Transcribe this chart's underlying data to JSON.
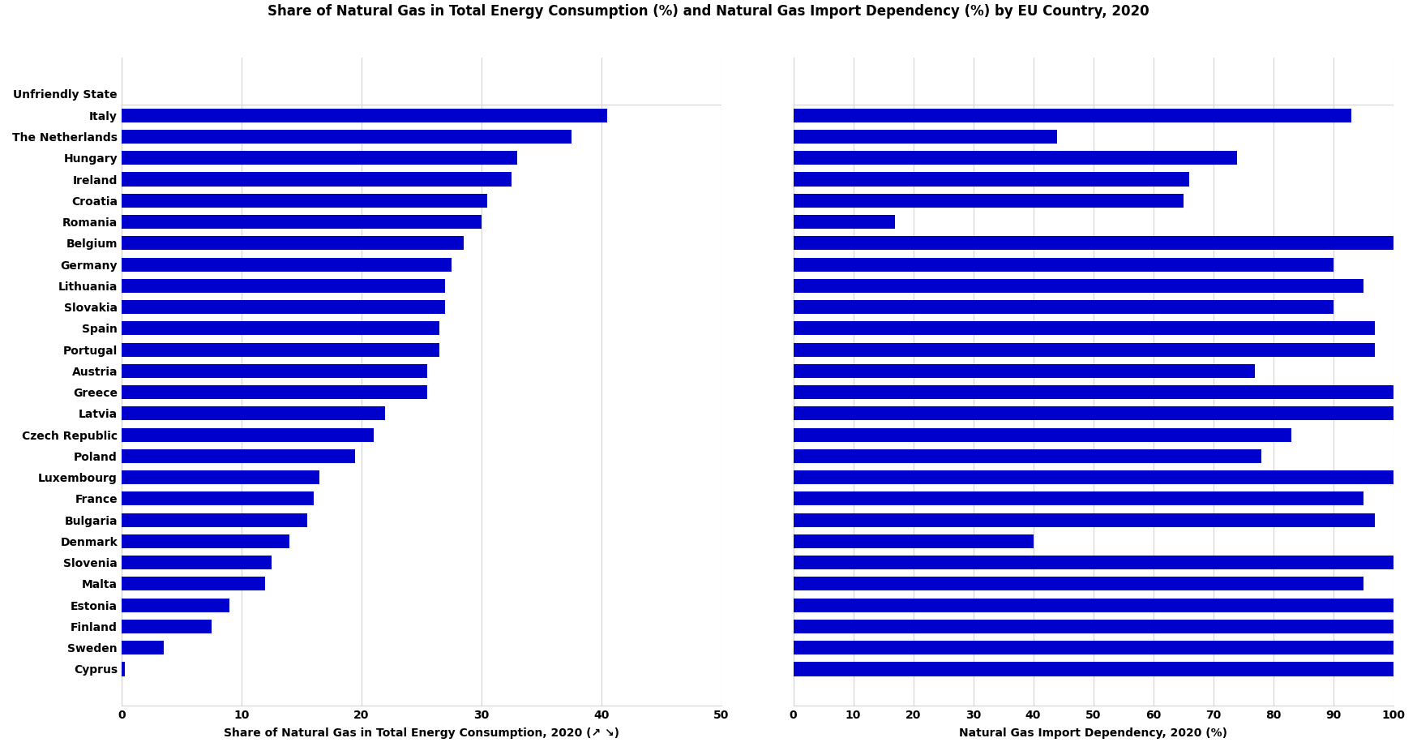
{
  "title": "Share of Natural Gas in Total Energy Consumption (%) and Natural Gas Import Dependency (%) by EU Country, 2020",
  "countries": [
    "Unfriendly State",
    "Italy",
    "The Netherlands",
    "Hungary",
    "Ireland",
    "Croatia",
    "Romania",
    "Belgium",
    "Germany",
    "Lithuania",
    "Slovakia",
    "Spain",
    "Portugal",
    "Austria",
    "Greece",
    "Latvia",
    "Czech Republic",
    "Poland",
    "Luxembourg",
    "France",
    "Bulgaria",
    "Denmark",
    "Slovenia",
    "Malta",
    "Estonia",
    "Finland",
    "Sweden",
    "Cyprus"
  ],
  "share_values": [
    0,
    40.5,
    37.5,
    33.0,
    32.5,
    30.5,
    30.0,
    28.5,
    27.5,
    27.0,
    27.0,
    26.5,
    26.5,
    25.5,
    25.5,
    22.0,
    21.0,
    19.5,
    16.5,
    16.0,
    15.5,
    14.0,
    12.5,
    12.0,
    9.0,
    7.5,
    3.5,
    0.3
  ],
  "import_dep_values": [
    0,
    93.0,
    44.0,
    74.0,
    66.0,
    65.0,
    17.0,
    100.0,
    90.0,
    95.0,
    90.0,
    97.0,
    97.0,
    77.0,
    100.0,
    100.0,
    83.0,
    78.0,
    100.0,
    95.0,
    97.0,
    40.0,
    100.0,
    95.0,
    100.0,
    100.0,
    100.0,
    100.0
  ],
  "bar_color": "#0000cc",
  "xlabel_left": "Share of Natural Gas in Total Energy Consumption, 2020 (↗ ↘)",
  "xlabel_right": "Natural Gas Import Dependency, 2020 (%)",
  "bar_height": 0.65,
  "xlim_left": [
    0,
    50
  ],
  "xlim_right": [
    0,
    100
  ],
  "xticks_left": [
    0,
    10,
    20,
    30,
    40,
    50
  ],
  "xticks_right": [
    0,
    10,
    20,
    30,
    40,
    50,
    60,
    70,
    80,
    90,
    100
  ]
}
